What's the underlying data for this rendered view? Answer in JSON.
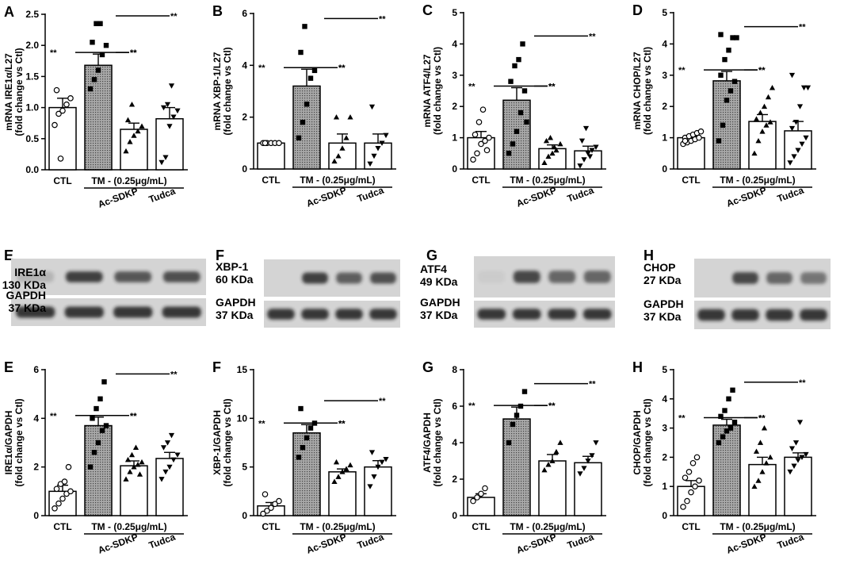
{
  "figure": {
    "charts": [
      {
        "letter": "A",
        "ylabel_lines": [
          "mRNA IRE1α/L27",
          "(fold change vs Ctl)"
        ],
        "ylim": [
          0,
          2.5
        ],
        "yticks": [
          "0.0",
          "0.5",
          "1.0",
          "1.5",
          "2.0",
          "2.5"
        ]
      },
      {
        "letter": "B",
        "ylabel_lines": [
          "mRNA XBP-1/L27",
          "(fold change vs Ctl)"
        ],
        "ylim": [
          0,
          6
        ],
        "yticks": [
          "0",
          "2",
          "4",
          "6"
        ]
      },
      {
        "letter": "C",
        "ylabel_lines": [
          "mRNA ATF4/L27",
          "(fold change vs Ctl)"
        ],
        "ylim": [
          0,
          5
        ],
        "yticks": [
          "0",
          "1",
          "2",
          "3",
          "4",
          "5"
        ]
      },
      {
        "letter": "D",
        "ylabel_lines": [
          "mRNA CHOP/L27",
          "(fold change vs Ctl)"
        ],
        "ylim": [
          0,
          5
        ],
        "yticks": [
          "0",
          "1",
          "2",
          "3",
          "4",
          "5"
        ]
      },
      {
        "letter": "E",
        "ylabel_lines": [
          "IRE1α/GAPDH",
          "(fold change vs Ctl)"
        ],
        "ylim": [
          0,
          6
        ],
        "yticks": [
          "0",
          "2",
          "4",
          "6"
        ]
      },
      {
        "letter": "F",
        "ylabel_lines": [
          "XBP-1/GAPDH",
          "(fold change vs Ctl)"
        ],
        "ylim": [
          0,
          15
        ],
        "yticks": [
          "0",
          "5",
          "10",
          "15"
        ]
      },
      {
        "letter": "G",
        "ylabel_lines": [
          "ATF4/GAPDH",
          "(fold change vs Ctl)"
        ],
        "ylim": [
          0,
          8
        ],
        "yticks": [
          "0",
          "2",
          "4",
          "6",
          "8"
        ]
      },
      {
        "letter": "H",
        "ylabel_lines": [
          "CHOP/GAPDH",
          "(fold change vs Ctl)"
        ],
        "ylim": [
          0,
          5
        ],
        "yticks": [
          "0",
          "1",
          "2",
          "3",
          "4",
          "5"
        ]
      }
    ],
    "ctl_label": "CTL",
    "tm_label": "TM - (0.25μg/mL)",
    "acsdkp_label": "Ac-SDKP",
    "tudca_label": "Tudca",
    "significance": "**",
    "blots": [
      {
        "target_lines": [
          "IRE1α",
          "130 KDa"
        ],
        "gapdh_lines": [
          "GAPDH",
          "37 KDa"
        ]
      },
      {
        "target_lines": [
          "XBP-1",
          "60 KDa"
        ],
        "gapdh_lines": [
          "GAPDH",
          "37 KDa"
        ]
      },
      {
        "target_lines": [
          "ATF4",
          "49 KDa"
        ],
        "gapdh_lines": [
          "GAPDH",
          "37 KDa"
        ]
      },
      {
        "target_lines": [
          "CHOP",
          "27 KDa"
        ],
        "gapdh_lines": [
          "GAPDH",
          "37 KDa"
        ]
      }
    ],
    "colors": {
      "ink": "#000000",
      "tm_fill": "#8a8a8a",
      "blot_bg": "#d4d4d4",
      "band": "#1a1a1a"
    }
  },
  "chart_data": [
    {
      "type": "bar",
      "title": "",
      "xlabel": "",
      "ylabel": "mRNA IRE1α/L27 (fold change vs Ctl)",
      "ylim": [
        0,
        2.5
      ],
      "categories": [
        "CTL",
        "TM",
        "TM + Ac-SDKP",
        "TM + Tudca"
      ],
      "values": [
        1.0,
        1.68,
        0.65,
        0.82
      ],
      "sem": [
        0.15,
        0.18,
        0.1,
        0.18
      ],
      "points": [
        [
          0.72,
          0.9,
          0.95,
          1.05,
          1.15,
          1.28,
          0.18
        ],
        [
          1.3,
          1.45,
          1.6,
          1.85,
          2.0,
          2.05,
          2.35,
          2.35
        ],
        [
          0.3,
          0.45,
          0.55,
          0.62,
          0.7,
          0.8,
          1.05
        ],
        [
          0.12,
          0.2,
          0.7,
          0.85,
          0.95,
          1.0,
          1.05,
          1.35
        ]
      ]
    },
    {
      "type": "bar",
      "title": "",
      "xlabel": "",
      "ylabel": "mRNA XBP-1/L27 (fold change vs Ctl)",
      "ylim": [
        0,
        6
      ],
      "categories": [
        "CTL",
        "TM",
        "TM + Ac-SDKP",
        "TM + Tudca"
      ],
      "values": [
        1.0,
        3.2,
        1.0,
        1.0
      ],
      "sem": [
        0.03,
        0.65,
        0.35,
        0.35
      ],
      "points": [
        [
          1.0,
          1.0,
          1.0,
          1.0,
          1.0,
          1.0
        ],
        [
          1.2,
          1.8,
          2.5,
          3.5,
          3.8,
          4.5,
          5.5
        ],
        [
          0.3,
          0.5,
          0.8,
          1.2,
          2.0,
          2.0
        ],
        [
          0.2,
          0.5,
          0.8,
          1.0,
          1.3,
          2.4
        ]
      ]
    },
    {
      "type": "bar",
      "title": "",
      "xlabel": "",
      "ylabel": "mRNA ATF4/L27 (fold change vs Ctl)",
      "ylim": [
        0,
        5
      ],
      "categories": [
        "CTL",
        "TM",
        "TM + Ac-SDKP",
        "TM + Tudca"
      ],
      "values": [
        1.0,
        2.2,
        0.65,
        0.58
      ],
      "sem": [
        0.2,
        0.4,
        0.12,
        0.15
      ],
      "points": [
        [
          0.3,
          0.5,
          0.8,
          0.9,
          1.0,
          1.1,
          1.5,
          1.9,
          0.6
        ],
        [
          0.5,
          0.8,
          1.2,
          1.8,
          2.5,
          2.8,
          3.3,
          3.5,
          4.0,
          1.5
        ],
        [
          0.2,
          0.4,
          0.5,
          0.6,
          0.8,
          0.9,
          1.0,
          0.7
        ],
        [
          0.1,
          0.3,
          0.5,
          0.6,
          0.7,
          0.9,
          1.3,
          0.4
        ]
      ]
    },
    {
      "type": "bar",
      "title": "",
      "xlabel": "",
      "ylabel": "mRNA CHOP/L27 (fold change vs Ctl)",
      "ylim": [
        0,
        5
      ],
      "categories": [
        "CTL",
        "TM",
        "TM + Ac-SDKP",
        "TM + Tudca"
      ],
      "values": [
        1.0,
        2.82,
        1.52,
        1.22
      ],
      "sem": [
        0.05,
        0.3,
        0.22,
        0.3
      ],
      "points": [
        [
          0.8,
          0.85,
          0.9,
          0.95,
          1.0,
          1.0,
          1.05,
          1.1,
          1.15,
          1.2,
          0.9
        ],
        [
          0.9,
          1.4,
          2.2,
          2.5,
          2.8,
          3.0,
          3.5,
          3.8,
          4.2,
          4.2,
          4.3
        ],
        [
          0.5,
          0.9,
          1.2,
          1.4,
          1.5,
          1.6,
          1.8,
          2.0,
          2.3,
          2.6
        ],
        [
          0.2,
          0.4,
          0.6,
          0.8,
          1.0,
          1.3,
          1.5,
          2.0,
          2.6,
          2.6,
          3.0
        ]
      ]
    },
    {
      "type": "bar",
      "title": "",
      "xlabel": "",
      "ylabel": "IRE1α/GAPDH (fold change vs Ctl)",
      "ylim": [
        0,
        6
      ],
      "categories": [
        "CTL",
        "TM",
        "TM + Ac-SDKP",
        "TM + Tudca"
      ],
      "values": [
        1.0,
        3.7,
        2.05,
        2.35
      ],
      "sem": [
        0.25,
        0.35,
        0.2,
        0.25
      ],
      "points": [
        [
          0.3,
          0.5,
          0.7,
          0.9,
          1.0,
          1.1,
          1.3,
          1.4,
          2.0
        ],
        [
          2.0,
          2.6,
          3.0,
          3.5,
          3.7,
          4.0,
          4.4,
          4.8,
          5.5
        ],
        [
          1.5,
          1.8,
          2.0,
          2.1,
          2.2,
          2.3,
          2.5,
          2.8,
          1.7
        ],
        [
          1.5,
          1.8,
          2.0,
          2.3,
          2.5,
          2.8,
          3.0,
          3.3
        ]
      ]
    },
    {
      "type": "bar",
      "title": "",
      "xlabel": "",
      "ylabel": "XBP-1/GAPDH (fold change vs Ctl)",
      "ylim": [
        0,
        15
      ],
      "categories": [
        "CTL",
        "TM",
        "TM + Ac-SDKP",
        "TM + Tudca"
      ],
      "values": [
        1.0,
        8.5,
        4.5,
        5.0
      ],
      "sem": [
        0.35,
        0.85,
        0.3,
        0.65
      ],
      "points": [
        [
          0.2,
          0.5,
          0.8,
          1.2,
          1.5,
          2.2
        ],
        [
          6.0,
          7.0,
          8.0,
          9.0,
          9.5,
          11.0
        ],
        [
          3.5,
          4.0,
          4.5,
          4.8,
          5.2,
          5.5
        ],
        [
          3.0,
          4.0,
          5.0,
          5.5,
          5.8,
          6.5
        ]
      ]
    },
    {
      "type": "bar",
      "title": "",
      "xlabel": "",
      "ylabel": "ATF4/GAPDH (fold change vs Ctl)",
      "ylim": [
        0,
        8
      ],
      "categories": [
        "CTL",
        "TM",
        "TM + Ac-SDKP",
        "TM + Tudca"
      ],
      "values": [
        1.0,
        5.3,
        3.0,
        2.9
      ],
      "sem": [
        0.2,
        0.65,
        0.35,
        0.35
      ],
      "points": [
        [
          0.8,
          1.0,
          1.2,
          1.5
        ],
        [
          4.0,
          5.0,
          5.5,
          6.0,
          6.8
        ],
        [
          2.5,
          2.8,
          3.0,
          3.5,
          4.0
        ],
        [
          2.3,
          2.6,
          3.0,
          3.3,
          4.0
        ]
      ]
    },
    {
      "type": "bar",
      "title": "",
      "xlabel": "",
      "ylabel": "CHOP/GAPDH (fold change vs Ctl)",
      "ylim": [
        0,
        5
      ],
      "categories": [
        "CTL",
        "TM",
        "TM + Ac-SDKP",
        "TM + Tudca"
      ],
      "values": [
        1.0,
        3.1,
        1.75,
        2.0
      ],
      "sem": [
        0.2,
        0.2,
        0.25,
        0.15
      ],
      "points": [
        [
          0.3,
          0.5,
          0.8,
          1.0,
          1.2,
          1.3,
          1.5,
          1.8,
          2.0
        ],
        [
          2.5,
          2.7,
          2.9,
          3.0,
          3.2,
          3.4,
          3.6,
          4.0,
          4.3
        ],
        [
          1.0,
          1.2,
          1.5,
          1.8,
          2.0,
          2.2,
          2.5,
          3.0
        ],
        [
          1.5,
          1.7,
          1.9,
          2.0,
          2.1,
          2.3,
          2.5,
          3.2
        ]
      ]
    }
  ]
}
